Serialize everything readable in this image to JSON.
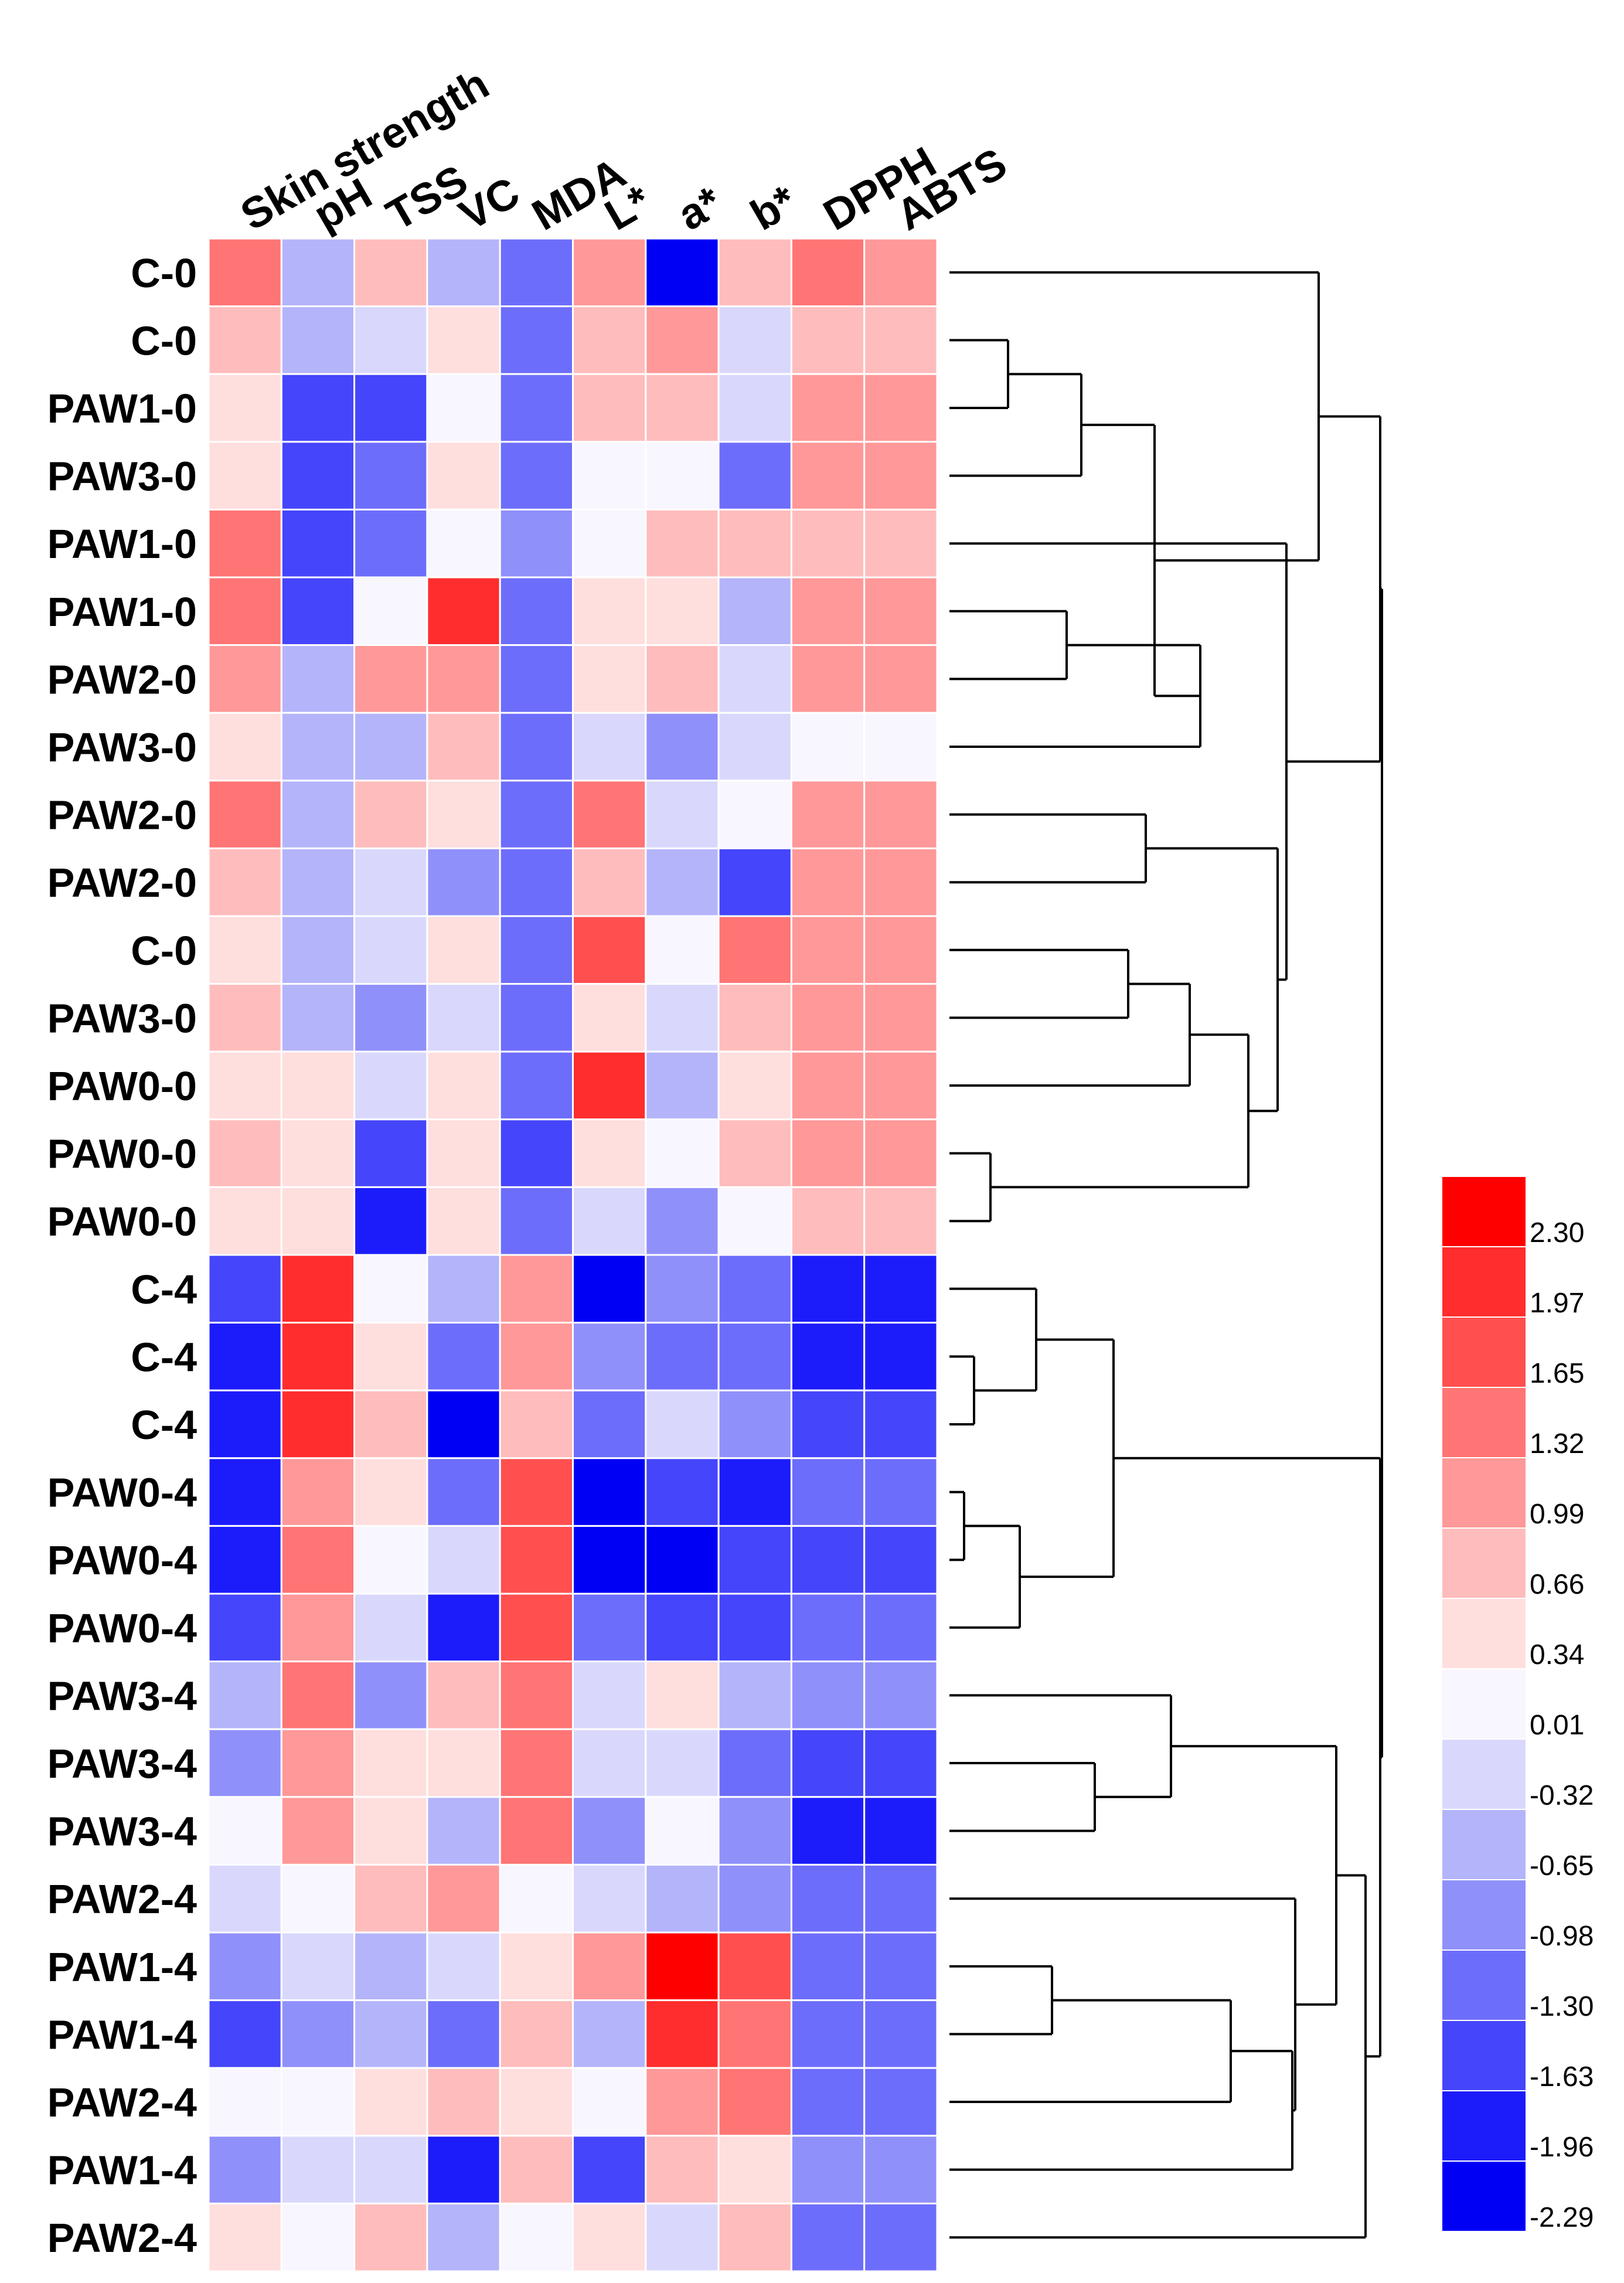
{
  "chart_data": {
    "type": "heatmap",
    "title": "",
    "columns": [
      "Skin strength",
      "pH",
      "TSS",
      "VC",
      "MDA",
      "L*",
      "a*",
      "b*",
      "DPPH",
      "ABTS"
    ],
    "rows": [
      "C-0",
      "C-0",
      "PAW1-0",
      "PAW3-0",
      "PAW1-0",
      "PAW1-0",
      "PAW2-0",
      "PAW3-0",
      "PAW2-0",
      "PAW2-0",
      "C-0",
      "PAW3-0",
      "PAW0-0",
      "PAW0-0",
      "PAW0-0",
      "C-4",
      "C-4",
      "C-4",
      "PAW0-4",
      "PAW0-4",
      "PAW0-4",
      "PAW3-4",
      "PAW3-4",
      "PAW3-4",
      "PAW2-4",
      "PAW1-4",
      "PAW1-4",
      "PAW2-4",
      "PAW1-4",
      "PAW2-4"
    ],
    "values": [
      [
        1.32,
        -0.65,
        0.66,
        -0.65,
        -1.3,
        0.99,
        -2.29,
        0.66,
        1.32,
        0.99
      ],
      [
        0.66,
        -0.65,
        -0.32,
        0.34,
        -1.3,
        0.66,
        0.99,
        -0.32,
        0.66,
        0.66
      ],
      [
        0.34,
        -1.63,
        -1.63,
        0.01,
        -1.3,
        0.66,
        0.66,
        -0.32,
        0.99,
        0.99
      ],
      [
        0.34,
        -1.63,
        -1.3,
        0.34,
        -1.3,
        0.01,
        0.01,
        -1.3,
        0.99,
        0.99
      ],
      [
        1.32,
        -1.63,
        -1.3,
        0.01,
        -0.98,
        0.01,
        0.66,
        0.66,
        0.66,
        0.66
      ],
      [
        1.32,
        -1.63,
        0.01,
        1.97,
        -1.3,
        0.34,
        0.34,
        -0.65,
        0.99,
        0.99
      ],
      [
        0.99,
        -0.65,
        0.99,
        0.99,
        -1.3,
        0.34,
        0.66,
        -0.32,
        0.99,
        0.99
      ],
      [
        0.34,
        -0.65,
        -0.65,
        0.66,
        -1.3,
        -0.32,
        -0.98,
        -0.32,
        0.01,
        0.01
      ],
      [
        1.32,
        -0.65,
        0.66,
        0.34,
        -1.3,
        1.32,
        -0.32,
        0.01,
        0.99,
        0.99
      ],
      [
        0.66,
        -0.65,
        -0.32,
        -0.98,
        -1.3,
        0.66,
        -0.65,
        -1.63,
        0.99,
        0.99
      ],
      [
        0.34,
        -0.65,
        -0.32,
        0.34,
        -1.3,
        1.65,
        0.01,
        1.32,
        0.99,
        0.99
      ],
      [
        0.66,
        -0.65,
        -0.98,
        -0.32,
        -1.3,
        0.34,
        -0.32,
        0.66,
        0.99,
        0.99
      ],
      [
        0.34,
        0.34,
        -0.32,
        0.34,
        -1.3,
        1.97,
        -0.65,
        0.34,
        0.99,
        0.99
      ],
      [
        0.66,
        0.34,
        -1.63,
        0.34,
        -1.63,
        0.34,
        0.01,
        0.66,
        0.99,
        0.99
      ],
      [
        0.34,
        0.34,
        -1.96,
        0.34,
        -1.3,
        -0.32,
        -0.98,
        0.01,
        0.66,
        0.66
      ],
      [
        -1.63,
        1.97,
        0.01,
        -0.65,
        0.99,
        -2.29,
        -0.98,
        -1.3,
        -1.96,
        -1.96
      ],
      [
        -1.96,
        1.97,
        0.34,
        -1.3,
        0.99,
        -0.98,
        -1.3,
        -1.3,
        -1.96,
        -1.96
      ],
      [
        -1.96,
        1.97,
        0.66,
        -2.29,
        0.66,
        -1.3,
        -0.32,
        -0.98,
        -1.63,
        -1.63
      ],
      [
        -1.96,
        0.99,
        0.34,
        -1.3,
        1.65,
        -2.29,
        -1.63,
        -1.96,
        -1.3,
        -1.3
      ],
      [
        -1.96,
        1.32,
        0.01,
        -0.32,
        1.65,
        -2.29,
        -2.29,
        -1.63,
        -1.63,
        -1.63
      ],
      [
        -1.63,
        0.99,
        -0.32,
        -1.96,
        1.65,
        -1.3,
        -1.63,
        -1.63,
        -1.3,
        -1.3
      ],
      [
        -0.65,
        1.32,
        -0.98,
        0.66,
        1.32,
        -0.32,
        0.34,
        -0.65,
        -0.98,
        -0.98
      ],
      [
        -0.98,
        0.99,
        0.34,
        0.34,
        1.32,
        -0.32,
        -0.32,
        -1.3,
        -1.63,
        -1.63
      ],
      [
        0.01,
        0.99,
        0.34,
        -0.65,
        1.32,
        -0.98,
        0.01,
        -0.98,
        -1.96,
        -1.96
      ],
      [
        -0.32,
        0.01,
        0.66,
        0.99,
        0.01,
        -0.32,
        -0.65,
        -0.98,
        -1.3,
        -1.3
      ],
      [
        -0.98,
        -0.32,
        -0.65,
        -0.32,
        0.34,
        0.99,
        2.3,
        1.65,
        -1.3,
        -1.3
      ],
      [
        -1.63,
        -0.98,
        -0.65,
        -1.3,
        0.66,
        -0.65,
        1.97,
        1.32,
        -1.3,
        -1.3
      ],
      [
        0.01,
        0.01,
        0.34,
        0.66,
        0.34,
        0.01,
        0.99,
        1.32,
        -1.3,
        -1.3
      ],
      [
        -0.98,
        -0.32,
        -0.32,
        -1.96,
        0.66,
        -1.63,
        0.66,
        0.34,
        -0.98,
        -0.98
      ],
      [
        0.34,
        0.01,
        0.66,
        -0.65,
        0.01,
        0.34,
        -0.32,
        0.66,
        -1.3,
        -1.3
      ]
    ],
    "color_scale": {
      "levels": [
        2.3,
        1.97,
        1.65,
        1.32,
        0.99,
        0.66,
        0.34,
        0.01,
        -0.32,
        -0.65,
        -0.98,
        -1.3,
        -1.63,
        -1.96,
        -2.29
      ],
      "labels": [
        "2.30",
        "1.97",
        "1.65",
        "1.32",
        "0.99",
        "0.66",
        "0.34",
        "0.01",
        "-0.32",
        "-0.65",
        "-0.98",
        "-1.30",
        "-1.63",
        "-1.96",
        "-2.29"
      ],
      "colors": [
        "#ff0000",
        "#ff2d2d",
        "#ff4f4f",
        "#ff7474",
        "#ff9898",
        "#ffbcbc",
        "#ffdede",
        "#f8f6ff",
        "#d9d8fc",
        "#b4b4fb",
        "#9090fb",
        "#6d6dfb",
        "#4545fb",
        "#1c1cfb",
        "#0000f5"
      ],
      "placement": "bottom-right"
    },
    "dendrogram": "rows"
  }
}
